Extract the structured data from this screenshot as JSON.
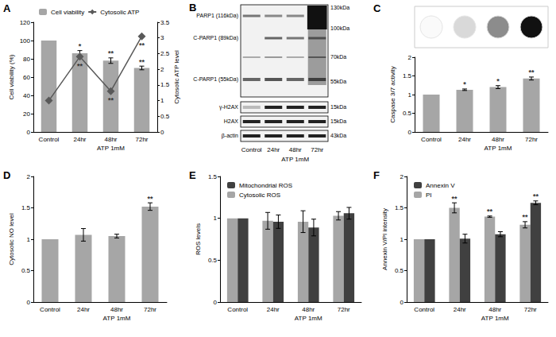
{
  "chart_data": [
    {
      "title": "A",
      "type": "bar",
      "categories": [
        "Control",
        "24hr",
        "48hr",
        "72hr"
      ],
      "xlabel": "ATP 1mM",
      "ylabel": "Cell viability (%)",
      "ylim": [
        0,
        120
      ],
      "yticks": [
        0,
        20,
        40,
        60,
        80,
        100,
        120
      ],
      "y2label": "Cytosolic ATP level",
      "y2lim": [
        0,
        3.5
      ],
      "y2ticks": [
        0,
        0.5,
        1,
        1.5,
        2,
        2.5,
        3,
        3.5
      ],
      "grid": false,
      "legend": "upper left",
      "series": [
        {
          "name": "Cell viability",
          "type": "bar",
          "color": "#a6a6a6",
          "values": [
            100,
            86,
            78,
            70
          ],
          "errors": [
            null,
            3,
            3,
            2
          ],
          "significance": [
            null,
            "*",
            "**",
            "**"
          ]
        },
        {
          "name": "Cytosolic ATP",
          "type": "line",
          "axis": "y2",
          "color": "#595959",
          "marker": "diamond",
          "values": [
            1,
            2.4,
            1.3,
            3.05
          ],
          "significance": [
            null,
            "**",
            "**",
            "**"
          ]
        }
      ]
    },
    {
      "title": "C",
      "type": "bar",
      "categories": [
        "Control",
        "24hr",
        "48hr",
        "72hr"
      ],
      "xlabel": "ATP 1mM",
      "ylabel": "Caspase 3/7 activity",
      "ylim": [
        0,
        2
      ],
      "yticks": [
        0,
        0.5,
        1,
        1.5,
        2
      ],
      "grid": false,
      "series": [
        {
          "name": "Caspase 3/7 activity",
          "color": "#a6a6a6",
          "values": [
            1,
            1.13,
            1.2,
            1.43
          ],
          "errors": [
            null,
            0.02,
            0.04,
            0.04
          ],
          "significance": [
            null,
            "*",
            "*",
            "**"
          ]
        }
      ]
    },
    {
      "title": "D",
      "type": "bar",
      "categories": [
        "Control",
        "24hr",
        "48hr",
        "72hr"
      ],
      "xlabel": "ATP 1mM",
      "ylabel": "Cytosolic NO level",
      "ylim": [
        0,
        2
      ],
      "yticks": [
        0,
        0.5,
        1,
        1.5,
        2
      ],
      "grid": false,
      "series": [
        {
          "name": "Cytosolic NO level",
          "color": "#a6a6a6",
          "values": [
            1,
            1.07,
            1.05,
            1.52
          ],
          "errors": [
            null,
            0.1,
            0.03,
            0.06
          ],
          "significance": [
            null,
            null,
            null,
            "**"
          ]
        }
      ]
    },
    {
      "title": "E",
      "type": "bar",
      "categories": [
        "Control",
        "24hr",
        "48hr",
        "72hr"
      ],
      "xlabel": "ATP 1mM",
      "ylabel": "ROS levels",
      "ylim": [
        0,
        1.5
      ],
      "yticks": [
        0,
        0.5,
        1,
        1.5
      ],
      "grid": false,
      "legend": "upper left",
      "series": [
        {
          "name": "Cytosolic ROS",
          "color": "#a6a6a6",
          "values": [
            1,
            0.97,
            0.96,
            1.03
          ],
          "errors": [
            null,
            0.1,
            0.13,
            0.05
          ]
        },
        {
          "name": "Mitochondrial ROS",
          "color": "#404040",
          "values": [
            1,
            0.96,
            0.89,
            1.06
          ],
          "errors": [
            null,
            0.08,
            0.1,
            0.07
          ]
        }
      ]
    },
    {
      "title": "F",
      "type": "bar",
      "categories": [
        "Control",
        "24hr",
        "48hr",
        "72hr"
      ],
      "xlabel": "ATP 1mM",
      "ylabel": "Annexin V/PI intensity",
      "ylim": [
        0,
        2
      ],
      "yticks": [
        0,
        0.5,
        1,
        1.5,
        2
      ],
      "grid": false,
      "legend": "upper left",
      "series": [
        {
          "name": "PI",
          "color": "#a6a6a6",
          "values": [
            1,
            1.5,
            1.36,
            1.23
          ],
          "errors": [
            null,
            0.08,
            0.01,
            0.05
          ],
          "significance": [
            null,
            "**",
            "**",
            "**"
          ]
        },
        {
          "name": "Annexin V",
          "color": "#404040",
          "values": [
            1,
            1.01,
            1.08,
            1.58
          ],
          "errors": [
            null,
            0.07,
            0.04,
            0.03
          ],
          "significance": [
            null,
            null,
            null,
            "**"
          ]
        }
      ]
    }
  ],
  "blot": {
    "title": "B",
    "row_labels": [
      "PARP1 (116kDa)",
      "C-PARP1 (89kDa)",
      "C-PARP1 (55kDa)",
      "γ-H2AX",
      "H2AX",
      "β-actin"
    ],
    "marker_labels": [
      "130kDa",
      "100kDa",
      "70kDa",
      "55kDa",
      "15kDa",
      "15kDa",
      "43kDa"
    ],
    "lanes": [
      "Control",
      "24hr",
      "48hr",
      "72hr"
    ],
    "xlabel": "ATP 1mM"
  }
}
